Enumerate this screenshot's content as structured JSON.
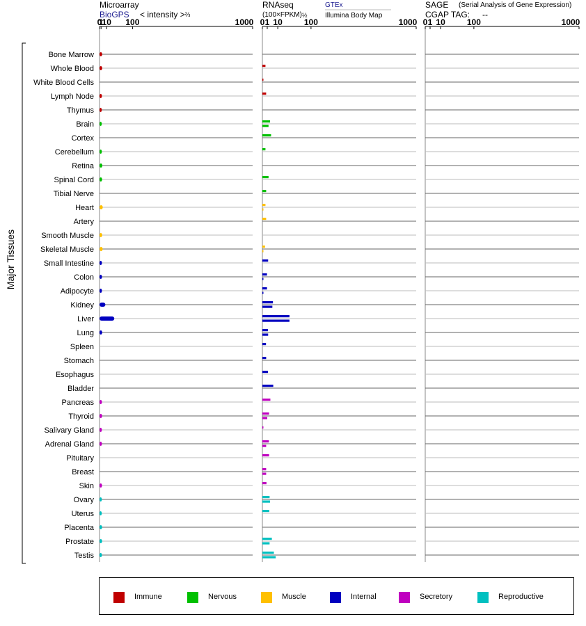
{
  "panels": {
    "microarray": {
      "title": "Microarray",
      "source": "BioGPS",
      "unit": "< intensity >",
      "unit_exponent": "⅔",
      "ticks": [
        "0",
        "1",
        "10",
        "100",
        "1000"
      ]
    },
    "rnaseq": {
      "title": "RNAseq",
      "unit": "(100×FPKM)",
      "unit_exponent": "½",
      "source_primary": "GTEx",
      "source_secondary": "Illumina Body Map",
      "ticks": [
        "0",
        "1",
        "10",
        "100",
        "1000"
      ]
    },
    "sage": {
      "title": "SAGE",
      "subtitle": "(Serial Analysis of Gene Expression)",
      "cgap_label": "CGAP TAG:",
      "cgap_value": "--",
      "ticks": [
        "0",
        "1",
        "10",
        "100",
        "1000"
      ]
    }
  },
  "y_group_label": "Major Tissues",
  "legend": [
    {
      "label": "Immune",
      "color": "#c00000"
    },
    {
      "label": "Nervous",
      "color": "#00c000"
    },
    {
      "label": "Muscle",
      "color": "#ffc000"
    },
    {
      "label": "Internal",
      "color": "#0000c0"
    },
    {
      "label": "Secretory",
      "color": "#c000c0"
    },
    {
      "label": "Reproductive",
      "color": "#00c0c0"
    }
  ],
  "chart_data": {
    "type": "bar",
    "scale": "power",
    "xlim": [
      0,
      1000
    ],
    "categories": [
      "Bone Marrow",
      "Whole Blood",
      "White Blood Cells",
      "Lymph Node",
      "Thymus",
      "Brain",
      "Cortex",
      "Cerebellum",
      "Retina",
      "Spinal Cord",
      "Tibial Nerve",
      "Heart",
      "Artery",
      "Smooth Muscle",
      "Skeletal Muscle",
      "Small Intestine",
      "Colon",
      "Adipocyte",
      "Kidney",
      "Liver",
      "Lung",
      "Spleen",
      "Stomach",
      "Esophagus",
      "Bladder",
      "Pancreas",
      "Thyroid",
      "Salivary Gland",
      "Adrenal Gland",
      "Pituitary",
      "Breast",
      "Skin",
      "Ovary",
      "Uterus",
      "Placenta",
      "Prostate",
      "Testis"
    ],
    "systems": [
      "Immune",
      "Immune",
      "Immune",
      "Immune",
      "Immune",
      "Nervous",
      "Nervous",
      "Nervous",
      "Nervous",
      "Nervous",
      "Nervous",
      "Muscle",
      "Muscle",
      "Muscle",
      "Muscle",
      "Internal",
      "Internal",
      "Internal",
      "Internal",
      "Internal",
      "Internal",
      "Internal",
      "Internal",
      "Internal",
      "Internal",
      "Secretory",
      "Secretory",
      "Secretory",
      "Secretory",
      "Secretory",
      "Secretory",
      "Secretory",
      "Reproductive",
      "Reproductive",
      "Reproductive",
      "Reproductive",
      "Reproductive"
    ],
    "microarray": [
      2.3,
      2.3,
      null,
      2.0,
      1.8,
      1.8,
      null,
      1.9,
      2.5,
      2.2,
      null,
      3.1,
      null,
      2.3,
      3.0,
      2.0,
      2.1,
      2.0,
      7.5,
      30,
      2.3,
      null,
      null,
      null,
      null,
      2.0,
      2.2,
      1.9,
      2.0,
      null,
      null,
      2.1,
      1.9,
      1.8,
      2.2,
      2.2,
      2.0
    ],
    "rnaseq_gtex": [
      null,
      0.4,
      0.01,
      0.6,
      null,
      2.5,
      3.2,
      0.4,
      null,
      1.6,
      0.6,
      0.4,
      0.6,
      null,
      0.3,
      1.4,
      0.9,
      0.9,
      4.7,
      31,
      1.3,
      0.55,
      0.6,
      1.3,
      5.0,
      2.7,
      1.9,
      0.01,
      1.8,
      1.9,
      0.6,
      0.7,
      2.2,
      2.0,
      null,
      3.8,
      5.6
    ],
    "rnaseq_ibm": [
      null,
      null,
      null,
      null,
      null,
      1.6,
      null,
      null,
      null,
      null,
      null,
      0.01,
      null,
      null,
      0.01,
      null,
      0.01,
      0.01,
      4.2,
      31,
      1.4,
      null,
      null,
      null,
      null,
      null,
      1.0,
      null,
      0.6,
      null,
      0.6,
      null,
      2.5,
      null,
      null,
      2.2,
      7.5
    ],
    "sage": []
  }
}
